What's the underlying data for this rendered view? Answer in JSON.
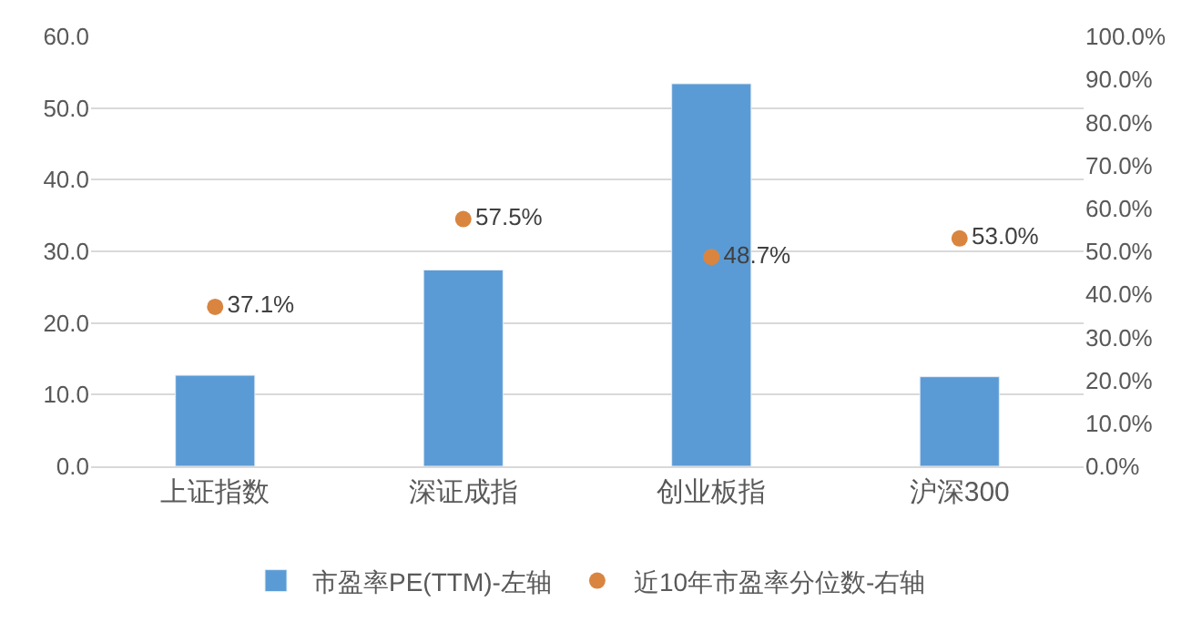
{
  "chart_data": {
    "type": "bar",
    "categories": [
      "上证指数",
      "深证成指",
      "创业板指",
      "沪深300"
    ],
    "series": [
      {
        "name": "市盈率PE(TTM)-左轴",
        "color": "#5b9bd5",
        "values": [
          12.7,
          27.4,
          53.4,
          12.5
        ]
      },
      {
        "name": "近10年市盈率分位数-右轴",
        "type": "scatter",
        "axis": "y2",
        "color": "#d98540",
        "values": [
          37.1,
          57.5,
          48.7,
          53.0
        ],
        "value_labels": [
          "37.1%",
          "57.5%",
          "48.7%",
          "53.0%"
        ]
      }
    ],
    "ylim": [
      0,
      60
    ],
    "yticks": [
      {
        "value": 0,
        "label": "0.0"
      },
      {
        "value": 10,
        "label": "10.0"
      },
      {
        "value": 20,
        "label": "20.0"
      },
      {
        "value": 30,
        "label": "30.0"
      },
      {
        "value": 40,
        "label": "40.0"
      },
      {
        "value": 50,
        "label": "50.0"
      },
      {
        "value": 60,
        "label": "60.0"
      }
    ],
    "y2lim": [
      0,
      100
    ],
    "y2ticks": [
      {
        "value": 0,
        "label": "0.0%"
      },
      {
        "value": 10,
        "label": "10.0%"
      },
      {
        "value": 20,
        "label": "20.0%"
      },
      {
        "value": 30,
        "label": "30.0%"
      },
      {
        "value": 40,
        "label": "40.0%"
      },
      {
        "value": 50,
        "label": "50.0%"
      },
      {
        "value": 60,
        "label": "60.0%"
      },
      {
        "value": 70,
        "label": "70.0%"
      },
      {
        "value": 80,
        "label": "80.0%"
      },
      {
        "value": 90,
        "label": "90.0%"
      },
      {
        "value": 100,
        "label": "100.0%"
      }
    ],
    "grid": "y",
    "legend": "bottom",
    "marker": "circle"
  }
}
